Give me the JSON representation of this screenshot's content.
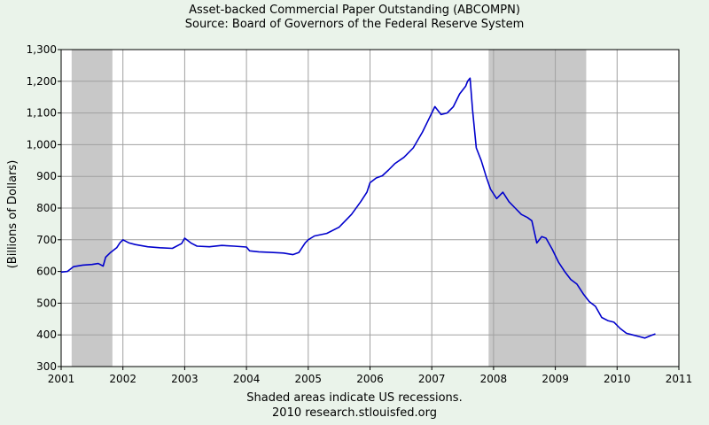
{
  "chart_data": {
    "type": "line",
    "title": "Asset-backed Commercial Paper Outstanding (ABCOMPN)",
    "subtitle": "Source: Board of Governors of the Federal Reserve System",
    "ylabel": "(Billions of Dollars)",
    "xlabel": "",
    "footnote": "Shaded areas indicate US recessions.",
    "credit": "2010 research.stlouisfed.org",
    "xlim": [
      2001,
      2011
    ],
    "ylim": [
      300,
      1300
    ],
    "x_ticks": [
      "2001",
      "2002",
      "2003",
      "2004",
      "2005",
      "2006",
      "2007",
      "2008",
      "2009",
      "2010",
      "2011"
    ],
    "y_ticks": [
      "300",
      "400",
      "500",
      "600",
      "700",
      "800",
      "900",
      "1,000",
      "1,100",
      "1,200",
      "1,300"
    ],
    "grid": true,
    "line_color": "#0000cc",
    "recession_color": "#c8c8c8",
    "recessions": [
      {
        "start": 2001.17,
        "end": 2001.83
      },
      {
        "start": 2007.92,
        "end": 2009.5
      }
    ],
    "series": [
      {
        "x": [
          2001.0,
          2001.1,
          2001.2,
          2001.35,
          2001.5,
          2001.6,
          2001.68,
          2001.72,
          2001.8,
          2001.9,
          2001.95,
          2002.0,
          2002.1,
          2002.2,
          2002.4,
          2002.6,
          2002.8,
          2002.95,
          2003.0,
          2003.1,
          2003.2,
          2003.4,
          2003.6,
          2003.8,
          2004.0,
          2004.05,
          2004.2,
          2004.4,
          2004.6,
          2004.75,
          2004.85,
          2004.95,
          2005.0,
          2005.1,
          2005.3,
          2005.5,
          2005.7,
          2005.85,
          2005.95,
          2006.0,
          2006.1,
          2006.2,
          2006.3,
          2006.4,
          2006.55,
          2006.7,
          2006.85,
          2006.95,
          2007.0,
          2007.05,
          2007.15,
          2007.25,
          2007.35,
          2007.45,
          2007.55,
          2007.58,
          2007.62,
          2007.66,
          2007.72,
          2007.8,
          2007.88,
          2007.95,
          2008.05,
          2008.15,
          2008.25,
          2008.35,
          2008.45,
          2008.55,
          2008.62,
          2008.7,
          2008.78,
          2008.85,
          2008.95,
          2009.05,
          2009.15,
          2009.25,
          2009.35,
          2009.45,
          2009.55,
          2009.65,
          2009.75,
          2009.85,
          2009.95,
          2010.05,
          2010.15,
          2010.25,
          2010.35,
          2010.45,
          2010.55,
          2010.62
        ],
        "values": [
          598,
          600,
          615,
          620,
          622,
          625,
          617,
          645,
          660,
          675,
          690,
          700,
          690,
          685,
          678,
          675,
          673,
          688,
          705,
          690,
          680,
          678,
          682,
          680,
          677,
          665,
          662,
          660,
          658,
          653,
          660,
          690,
          700,
          712,
          720,
          740,
          780,
          820,
          850,
          880,
          895,
          902,
          920,
          940,
          960,
          990,
          1040,
          1080,
          1100,
          1120,
          1095,
          1100,
          1120,
          1160,
          1185,
          1200,
          1210,
          1110,
          990,
          950,
          900,
          860,
          830,
          850,
          820,
          800,
          780,
          770,
          760,
          690,
          710,
          705,
          670,
          630,
          600,
          575,
          560,
          530,
          505,
          490,
          455,
          445,
          440,
          420,
          405,
          400,
          395,
          390,
          398,
          403
        ]
      }
    ]
  }
}
